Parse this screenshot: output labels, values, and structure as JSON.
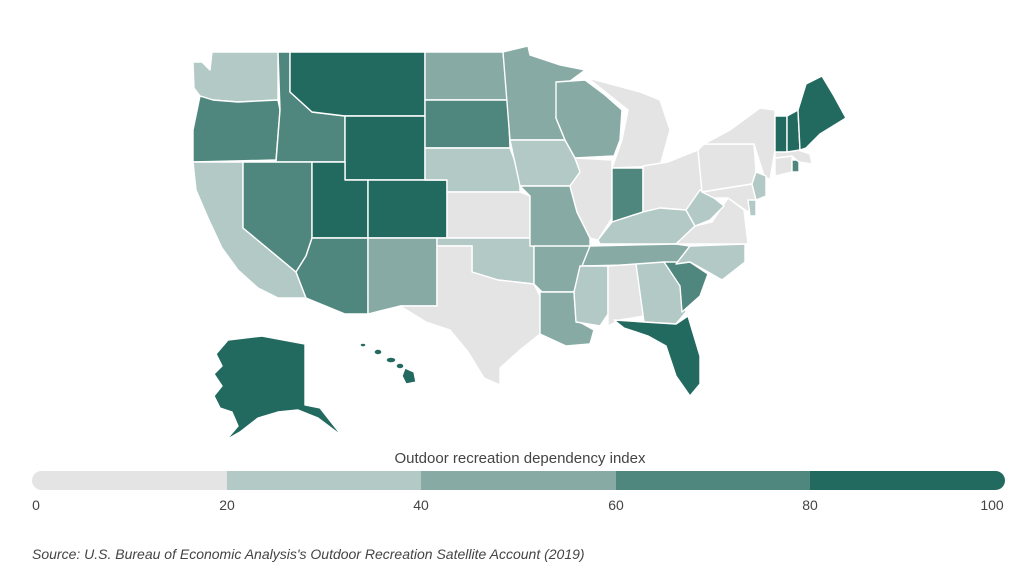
{
  "legend": {
    "title": "Outdoor recreation dependency index",
    "ticks": [
      "0",
      "20",
      "40",
      "60",
      "80",
      "100"
    ],
    "bins": [
      {
        "from": 0,
        "to": 20,
        "color": "#e4e4e4"
      },
      {
        "from": 20,
        "to": 40,
        "color": "#b3c9c6"
      },
      {
        "from": 40,
        "to": 60,
        "color": "#87aba4"
      },
      {
        "from": 60,
        "to": 80,
        "color": "#4f877e"
      },
      {
        "from": 80,
        "to": 100,
        "color": "#226a5f"
      }
    ]
  },
  "map_data": {
    "type": "choropleth",
    "region": "United States",
    "states": [
      {
        "state": "WA",
        "bin": 1
      },
      {
        "state": "OR",
        "bin": 3
      },
      {
        "state": "CA",
        "bin": 1
      },
      {
        "state": "ID",
        "bin": 3
      },
      {
        "state": "NV",
        "bin": 3
      },
      {
        "state": "MT",
        "bin": 4
      },
      {
        "state": "WY",
        "bin": 4
      },
      {
        "state": "UT",
        "bin": 4
      },
      {
        "state": "CO",
        "bin": 4
      },
      {
        "state": "AZ",
        "bin": 3
      },
      {
        "state": "NM",
        "bin": 2
      },
      {
        "state": "ND",
        "bin": 2
      },
      {
        "state": "SD",
        "bin": 3
      },
      {
        "state": "NE",
        "bin": 1
      },
      {
        "state": "KS",
        "bin": 0
      },
      {
        "state": "OK",
        "bin": 1
      },
      {
        "state": "TX",
        "bin": 0
      },
      {
        "state": "MN",
        "bin": 2
      },
      {
        "state": "IA",
        "bin": 1
      },
      {
        "state": "MO",
        "bin": 2
      },
      {
        "state": "AR",
        "bin": 2
      },
      {
        "state": "LA",
        "bin": 2
      },
      {
        "state": "WI",
        "bin": 2
      },
      {
        "state": "MI",
        "bin": 0
      },
      {
        "state": "IL",
        "bin": 0
      },
      {
        "state": "IN",
        "bin": 3
      },
      {
        "state": "OH",
        "bin": 0
      },
      {
        "state": "KY",
        "bin": 1
      },
      {
        "state": "TN",
        "bin": 2
      },
      {
        "state": "MS",
        "bin": 1
      },
      {
        "state": "AL",
        "bin": 0
      },
      {
        "state": "GA",
        "bin": 1
      },
      {
        "state": "FL",
        "bin": 4
      },
      {
        "state": "SC",
        "bin": 3
      },
      {
        "state": "NC",
        "bin": 1
      },
      {
        "state": "VA",
        "bin": 0
      },
      {
        "state": "WV",
        "bin": 1
      },
      {
        "state": "PA",
        "bin": 0
      },
      {
        "state": "NY",
        "bin": 0
      },
      {
        "state": "NJ",
        "bin": 1
      },
      {
        "state": "DE",
        "bin": 1
      },
      {
        "state": "MD",
        "bin": 0
      },
      {
        "state": "CT",
        "bin": 0
      },
      {
        "state": "RI",
        "bin": 3
      },
      {
        "state": "MA",
        "bin": 0
      },
      {
        "state": "VT",
        "bin": 4
      },
      {
        "state": "NH",
        "bin": 4
      },
      {
        "state": "ME",
        "bin": 4
      },
      {
        "state": "AK",
        "bin": 4
      },
      {
        "state": "HI",
        "bin": 4
      }
    ]
  },
  "source": "Source:  U.S. Bureau of Economic Analysis's Outdoor Recreation Satellite Account (2019)"
}
